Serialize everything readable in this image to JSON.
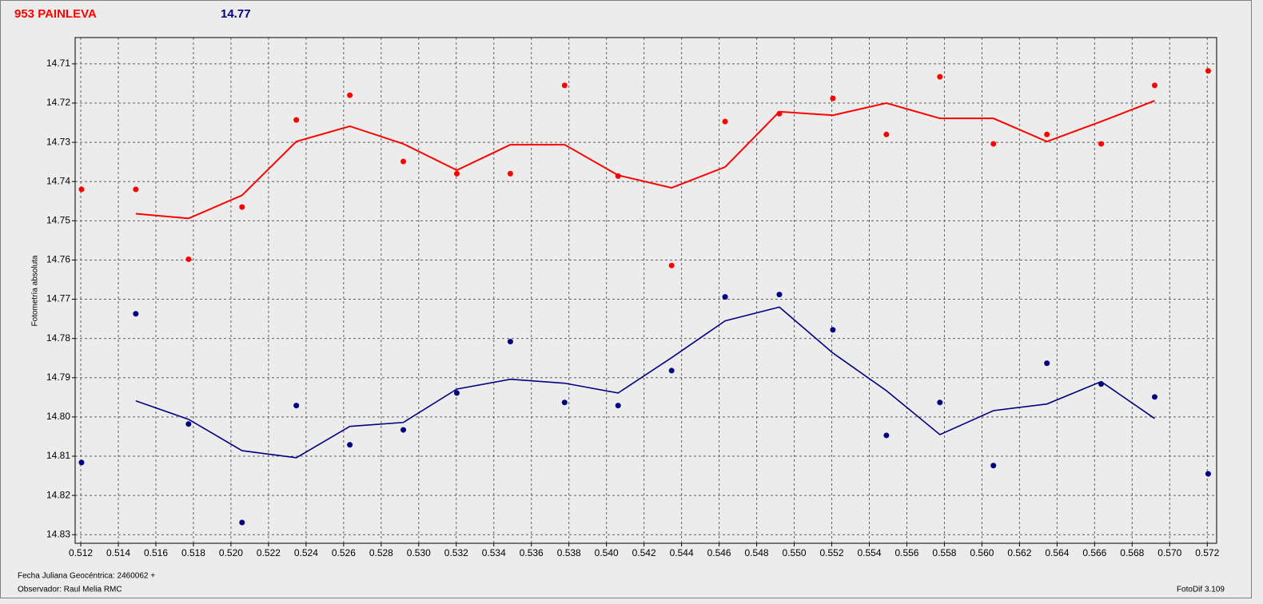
{
  "chart_data": {
    "type": "scatter",
    "title": "953 PAINLEVA",
    "subtitle": "14.77",
    "y_label": "Fotometría absoluta",
    "x_label": "Fecha Juliana Geocéntrica: 2460062 +",
    "observer": "Observador: Raul Melia RMC",
    "software": "FotoDif 3.109",
    "grid": true,
    "xlim": [
      0.5117,
      0.5725
    ],
    "ylim": [
      14.8322,
      14.7033
    ],
    "xticks": [
      0.512,
      0.514,
      0.516,
      0.518,
      0.52,
      0.522,
      0.524,
      0.526,
      0.528,
      0.53,
      0.532,
      0.534,
      0.536,
      0.538,
      0.54,
      0.542,
      0.544,
      0.546,
      0.548,
      0.55,
      0.552,
      0.554,
      0.556,
      0.558,
      0.56,
      0.562,
      0.564,
      0.566,
      0.568,
      0.57,
      0.572
    ],
    "xtick_labels": [
      "0.512",
      "0.514",
      "0.516",
      "0.518",
      "0.520",
      "0.522",
      "0.524",
      "0.526",
      "0.528",
      "0.530",
      "0.532",
      "0.534",
      "0.536",
      "0.538",
      "0.540",
      "0.542",
      "0.544",
      "0.546",
      "0.548",
      "0.550",
      "0.552",
      "0.554",
      "0.556",
      "0.558",
      "0.560",
      "0.562",
      "0.564",
      "0.566",
      "0.568",
      "0.570",
      "0.572"
    ],
    "yticks": [
      14.71,
      14.72,
      14.73,
      14.74,
      14.75,
      14.76,
      14.77,
      14.78,
      14.79,
      {
        "value": 14.8,
        "label": "14.80"
      },
      14.81,
      14.82,
      14.83
    ],
    "x": [
      0.51204,
      0.51493,
      0.51774,
      0.52059,
      0.52348,
      0.52633,
      0.52918,
      0.53203,
      0.53488,
      0.53777,
      0.54062,
      0.54347,
      0.54632,
      0.54921,
      0.55206,
      0.55491,
      0.55776,
      0.56061,
      0.56346,
      0.56635,
      0.5692,
      0.57205
    ],
    "series": [
      {
        "color": "#ff0000",
        "values": [
          14.742,
          14.742,
          14.7598,
          14.7465,
          14.7243,
          14.718,
          14.7349,
          14.738,
          14.738,
          14.7155,
          14.7386,
          14.7614,
          14.7247,
          14.7227,
          14.7188,
          14.728,
          14.7133,
          14.7304,
          14.728,
          14.7304,
          14.7155,
          14.7118
        ],
        "trend": [
          null,
          14.7482,
          14.7494,
          14.7435,
          14.7298,
          14.7259,
          14.7304,
          14.7371,
          14.7306,
          14.7306,
          14.7384,
          14.7416,
          14.7363,
          14.7222,
          14.7231,
          14.72,
          14.7239,
          14.7239,
          14.7298,
          14.7247,
          14.7194,
          null
        ]
      },
      {
        "color": "#000080",
        "values": [
          14.8116,
          14.7737,
          14.8018,
          14.8269,
          14.7971,
          14.8071,
          14.8033,
          14.7939,
          14.7808,
          14.7963,
          14.7971,
          14.7882,
          14.7694,
          14.7688,
          14.7778,
          14.8047,
          14.7963,
          14.8124,
          14.7863,
          14.7916,
          14.7949,
          14.8145
        ],
        "trend": [
          null,
          14.7959,
          14.8006,
          14.8086,
          14.8104,
          14.8024,
          14.8014,
          14.7929,
          14.7904,
          14.7914,
          14.7939,
          14.7849,
          14.7755,
          14.772,
          14.7837,
          14.7933,
          14.8045,
          14.7984,
          14.7967,
          14.791,
          14.8004,
          null
        ]
      }
    ]
  }
}
